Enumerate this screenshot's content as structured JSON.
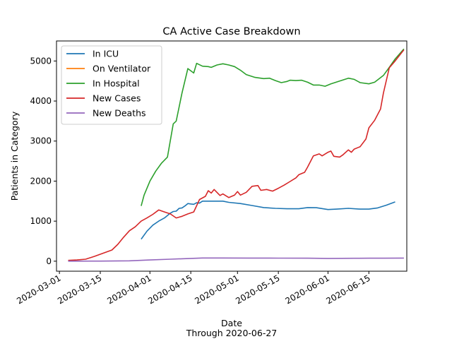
{
  "chart_data": {
    "type": "line",
    "title": "CA Active Case Breakdown",
    "xlabel": "Date",
    "xlabel_sub": "Through 2020-06-27",
    "ylabel": "Patients in Category",
    "xlim": [
      "2020-02-29",
      "2020-06-28"
    ],
    "ylim": [
      -250,
      5500
    ],
    "x_ticks": [
      "2020-03-01",
      "2020-03-15",
      "2020-04-01",
      "2020-04-15",
      "2020-05-01",
      "2020-05-15",
      "2020-06-01",
      "2020-06-15"
    ],
    "y_ticks": [
      0,
      1000,
      2000,
      3000,
      4000,
      5000
    ],
    "grid": false,
    "legend_position": "top-left",
    "series": [
      {
        "name": "In ICU",
        "color": "#1f77b4",
        "points": [
          [
            "2020-03-29",
            550
          ],
          [
            "2020-03-31",
            750
          ],
          [
            "2020-04-02",
            900
          ],
          [
            "2020-04-04",
            1000
          ],
          [
            "2020-04-06",
            1080
          ],
          [
            "2020-04-08",
            1200
          ],
          [
            "2020-04-09",
            1240
          ],
          [
            "2020-04-10",
            1250
          ],
          [
            "2020-04-11",
            1320
          ],
          [
            "2020-04-12",
            1330
          ],
          [
            "2020-04-13",
            1380
          ],
          [
            "2020-04-14",
            1440
          ],
          [
            "2020-04-15",
            1430
          ],
          [
            "2020-04-16",
            1420
          ],
          [
            "2020-04-17",
            1460
          ],
          [
            "2020-04-18",
            1450
          ],
          [
            "2020-04-19",
            1500
          ],
          [
            "2020-04-22",
            1500
          ],
          [
            "2020-04-26",
            1500
          ],
          [
            "2020-04-28",
            1470
          ],
          [
            "2020-05-02",
            1440
          ],
          [
            "2020-05-06",
            1390
          ],
          [
            "2020-05-10",
            1340
          ],
          [
            "2020-05-14",
            1320
          ],
          [
            "2020-05-18",
            1310
          ],
          [
            "2020-05-22",
            1310
          ],
          [
            "2020-05-25",
            1340
          ],
          [
            "2020-05-28",
            1335
          ],
          [
            "2020-06-01",
            1290
          ],
          [
            "2020-06-04",
            1300
          ],
          [
            "2020-06-08",
            1320
          ],
          [
            "2020-06-12",
            1300
          ],
          [
            "2020-06-15",
            1300
          ],
          [
            "2020-06-18",
            1330
          ],
          [
            "2020-06-21",
            1400
          ],
          [
            "2020-06-24",
            1480
          ]
        ]
      },
      {
        "name": "On Ventilator",
        "color": "#ff7f0e",
        "points": []
      },
      {
        "name": "In Hospital",
        "color": "#2ca02c",
        "points": [
          [
            "2020-03-29",
            1380
          ],
          [
            "2020-03-30",
            1650
          ],
          [
            "2020-04-01",
            2000
          ],
          [
            "2020-04-03",
            2250
          ],
          [
            "2020-04-05",
            2450
          ],
          [
            "2020-04-07",
            2600
          ],
          [
            "2020-04-09",
            3430
          ],
          [
            "2020-04-10",
            3500
          ],
          [
            "2020-04-12",
            4200
          ],
          [
            "2020-04-14",
            4810
          ],
          [
            "2020-04-16",
            4700
          ],
          [
            "2020-04-17",
            4940
          ],
          [
            "2020-04-19",
            4870
          ],
          [
            "2020-04-21",
            4860
          ],
          [
            "2020-04-22",
            4840
          ],
          [
            "2020-04-24",
            4900
          ],
          [
            "2020-04-26",
            4930
          ],
          [
            "2020-04-28",
            4900
          ],
          [
            "2020-04-30",
            4860
          ],
          [
            "2020-05-02",
            4770
          ],
          [
            "2020-05-04",
            4660
          ],
          [
            "2020-05-07",
            4590
          ],
          [
            "2020-05-10",
            4560
          ],
          [
            "2020-05-12",
            4570
          ],
          [
            "2020-05-14",
            4510
          ],
          [
            "2020-05-16",
            4460
          ],
          [
            "2020-05-18",
            4490
          ],
          [
            "2020-05-19",
            4520
          ],
          [
            "2020-05-21",
            4510
          ],
          [
            "2020-05-23",
            4520
          ],
          [
            "2020-05-25",
            4470
          ],
          [
            "2020-05-27",
            4400
          ],
          [
            "2020-05-29",
            4400
          ],
          [
            "2020-05-31",
            4370
          ],
          [
            "2020-06-02",
            4430
          ],
          [
            "2020-06-05",
            4500
          ],
          [
            "2020-06-08",
            4570
          ],
          [
            "2020-06-10",
            4540
          ],
          [
            "2020-06-12",
            4460
          ],
          [
            "2020-06-15",
            4430
          ],
          [
            "2020-06-17",
            4470
          ],
          [
            "2020-06-20",
            4640
          ],
          [
            "2020-06-22",
            4840
          ],
          [
            "2020-06-24",
            5050
          ],
          [
            "2020-06-27",
            5300
          ]
        ]
      },
      {
        "name": "New Cases",
        "color": "#d62728",
        "points": [
          [
            "2020-03-04",
            20
          ],
          [
            "2020-03-07",
            30
          ],
          [
            "2020-03-10",
            50
          ],
          [
            "2020-03-13",
            120
          ],
          [
            "2020-03-16",
            200
          ],
          [
            "2020-03-19",
            280
          ],
          [
            "2020-03-21",
            420
          ],
          [
            "2020-03-23",
            600
          ],
          [
            "2020-03-25",
            760
          ],
          [
            "2020-03-27",
            860
          ],
          [
            "2020-03-29",
            1000
          ],
          [
            "2020-03-31",
            1080
          ],
          [
            "2020-04-02",
            1170
          ],
          [
            "2020-04-04",
            1280
          ],
          [
            "2020-04-06",
            1230
          ],
          [
            "2020-04-08",
            1180
          ],
          [
            "2020-04-10",
            1080
          ],
          [
            "2020-04-12",
            1120
          ],
          [
            "2020-04-14",
            1180
          ],
          [
            "2020-04-16",
            1230
          ],
          [
            "2020-04-18",
            1540
          ],
          [
            "2020-04-20",
            1620
          ],
          [
            "2020-04-21",
            1760
          ],
          [
            "2020-04-22",
            1700
          ],
          [
            "2020-04-23",
            1790
          ],
          [
            "2020-04-25",
            1640
          ],
          [
            "2020-04-26",
            1680
          ],
          [
            "2020-04-28",
            1590
          ],
          [
            "2020-04-30",
            1650
          ],
          [
            "2020-05-01",
            1740
          ],
          [
            "2020-05-02",
            1650
          ],
          [
            "2020-05-04",
            1720
          ],
          [
            "2020-05-06",
            1870
          ],
          [
            "2020-05-08",
            1890
          ],
          [
            "2020-05-09",
            1770
          ],
          [
            "2020-05-11",
            1790
          ],
          [
            "2020-05-13",
            1750
          ],
          [
            "2020-05-15",
            1820
          ],
          [
            "2020-05-17",
            1900
          ],
          [
            "2020-05-19",
            1990
          ],
          [
            "2020-05-21",
            2080
          ],
          [
            "2020-05-22",
            2160
          ],
          [
            "2020-05-24",
            2220
          ],
          [
            "2020-05-25",
            2350
          ],
          [
            "2020-05-27",
            2630
          ],
          [
            "2020-05-29",
            2680
          ],
          [
            "2020-05-30",
            2630
          ],
          [
            "2020-06-01",
            2720
          ],
          [
            "2020-06-02",
            2750
          ],
          [
            "2020-06-03",
            2620
          ],
          [
            "2020-06-05",
            2600
          ],
          [
            "2020-06-06",
            2650
          ],
          [
            "2020-06-08",
            2780
          ],
          [
            "2020-06-09",
            2720
          ],
          [
            "2020-06-10",
            2800
          ],
          [
            "2020-06-12",
            2860
          ],
          [
            "2020-06-14",
            3050
          ],
          [
            "2020-06-15",
            3330
          ],
          [
            "2020-06-17",
            3520
          ],
          [
            "2020-06-19",
            3800
          ],
          [
            "2020-06-20",
            4200
          ],
          [
            "2020-06-22",
            4830
          ],
          [
            "2020-06-24",
            5000
          ],
          [
            "2020-06-27",
            5280
          ]
        ]
      },
      {
        "name": "New Deaths",
        "color": "#9467bd",
        "points": [
          [
            "2020-03-04",
            0
          ],
          [
            "2020-03-15",
            3
          ],
          [
            "2020-03-25",
            10
          ],
          [
            "2020-04-01",
            30
          ],
          [
            "2020-04-08",
            50
          ],
          [
            "2020-04-15",
            70
          ],
          [
            "2020-04-19",
            80
          ],
          [
            "2020-04-25",
            80
          ],
          [
            "2020-05-05",
            78
          ],
          [
            "2020-05-15",
            77
          ],
          [
            "2020-05-25",
            75
          ],
          [
            "2020-06-01",
            70
          ],
          [
            "2020-06-10",
            72
          ],
          [
            "2020-06-15",
            74
          ],
          [
            "2020-06-20",
            75
          ],
          [
            "2020-06-27",
            78
          ]
        ]
      }
    ]
  }
}
